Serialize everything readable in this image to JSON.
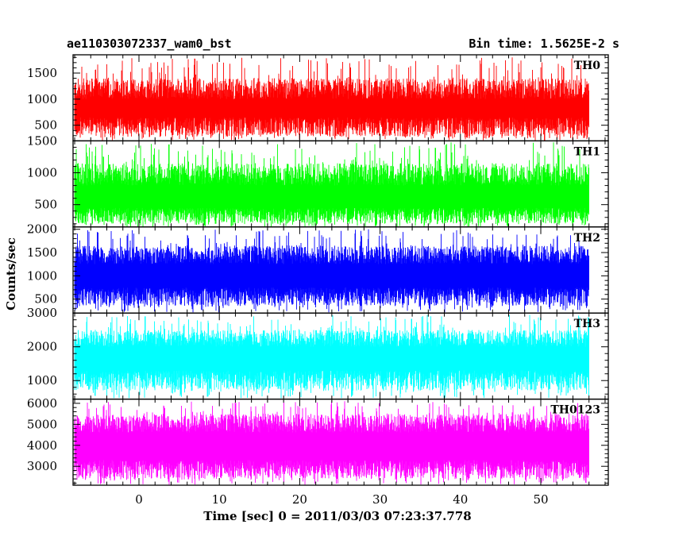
{
  "header": {
    "title": "ae110303072337_wam0_bst",
    "bin_time": "Bin time: 1.5625E-2 s"
  },
  "chart_data": {
    "type": "line",
    "title": "ae110303072337_wam0_bst",
    "xlabel": "Time [sec] 0 = 2011/03/03 07:23:37.778",
    "ylabel": "Counts/sec",
    "xlim": [
      -8.2,
      58.4
    ],
    "x_data_range": [
      -8.0,
      56.0
    ],
    "x_ticks": [
      0,
      10,
      20,
      30,
      40,
      50
    ],
    "x_tick_labels": [
      "0",
      "10",
      "20",
      "30",
      "40",
      "50"
    ],
    "panels": [
      {
        "name": "TH0",
        "color": "#ff0000",
        "ylim": [
          200,
          1850
        ],
        "y_ticks": [
          500,
          1000,
          1500
        ],
        "y_tick_labels": [
          "500",
          "1000",
          "1500"
        ],
        "band": {
          "low": 650,
          "high": 1000
        },
        "typical_min": 280,
        "typical_max": 1400,
        "peak_max": 1800
      },
      {
        "name": "TH1",
        "color": "#00ff00",
        "ylim": [
          150,
          1500
        ],
        "y_ticks": [
          500,
          1000,
          1500
        ],
        "y_tick_labels": [
          "500",
          "1000",
          "1500"
        ],
        "band": {
          "low": 450,
          "high": 800
        },
        "typical_min": 200,
        "typical_max": 1150,
        "peak_max": 1480
      },
      {
        "name": "TH2",
        "color": "#0000ff",
        "ylim": [
          200,
          2050
        ],
        "y_ticks": [
          500,
          1000,
          1500,
          2000
        ],
        "y_tick_labels": [
          "500",
          "1000",
          "1500",
          "2000"
        ],
        "band": {
          "low": 750,
          "high": 1250
        },
        "typical_min": 350,
        "typical_max": 1650,
        "peak_max": 2000
      },
      {
        "name": "TH3",
        "color": "#00ffff",
        "ylim": [
          450,
          3000
        ],
        "y_ticks": [
          1000,
          2000,
          3000
        ],
        "y_tick_labels": [
          "1000",
          "2000",
          "3000"
        ],
        "band": {
          "low": 1300,
          "high": 2000
        },
        "typical_min": 700,
        "typical_max": 2500,
        "peak_max": 2950
      },
      {
        "name": "TH0123",
        "color": "#ff00ff",
        "ylim": [
          2100,
          6200
        ],
        "y_ticks": [
          3000,
          4000,
          5000,
          6000
        ],
        "y_tick_labels": [
          "3000",
          "4000",
          "5000",
          "6000"
        ],
        "band": {
          "low": 3300,
          "high": 4600
        },
        "typical_min": 2400,
        "typical_max": 5500,
        "peak_max": 6100
      }
    ]
  }
}
